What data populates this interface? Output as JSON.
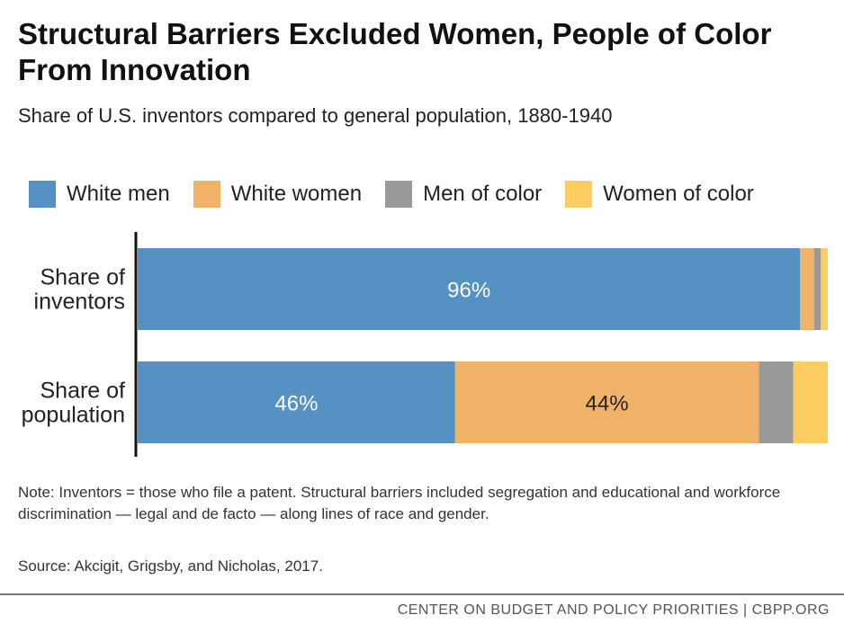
{
  "chart_data": {
    "type": "bar",
    "orientation": "horizontal",
    "stacked": true,
    "title": "Structural Barriers Excluded Women, People of Color From Innovation",
    "subtitle": "Share of U.S. inventors compared to general population, 1880-1940",
    "categories": [
      "Share of inventors",
      "Share of population"
    ],
    "category_lines": [
      [
        "Share of",
        "inventors"
      ],
      [
        "Share of",
        "population"
      ]
    ],
    "series": [
      {
        "name": "White men",
        "color": "#5592c3",
        "values": [
          96,
          46
        ],
        "labels": [
          "96%",
          "46%"
        ]
      },
      {
        "name": "White women",
        "color": "#f0b266",
        "values": [
          2,
          44
        ],
        "labels": [
          "",
          "44%"
        ]
      },
      {
        "name": "Men of color",
        "color": "#999999",
        "values": [
          1,
          5
        ],
        "labels": [
          "",
          ""
        ]
      },
      {
        "name": "Women of color",
        "color": "#fdcd62",
        "values": [
          1,
          5
        ],
        "labels": [
          "",
          ""
        ]
      }
    ],
    "xlim": [
      0,
      100
    ],
    "grid": false,
    "legend_position": "top"
  },
  "note": "Note: Inventors = those who file a patent. Structural barriers included segregation and educational and workforce discrimination — legal and de facto — along lines of race and gender.",
  "source": "Source: Akcigit, Grigsby, and Nicholas, 2017.",
  "footer": "CENTER ON BUDGET AND POLICY PRIORITIES | CBPP.ORG"
}
